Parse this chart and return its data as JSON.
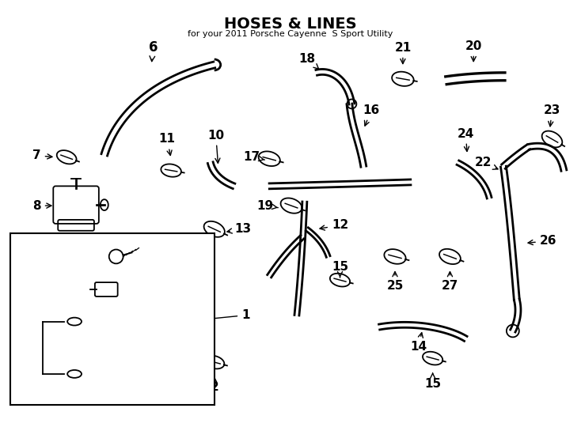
{
  "title": "HOSES & LINES",
  "subtitle": "for your 2011 Porsche Cayenne  S Sport Utility",
  "background_color": "#ffffff",
  "line_color": "#000000",
  "fig_width": 7.34,
  "fig_height": 5.4,
  "dpi": 100
}
